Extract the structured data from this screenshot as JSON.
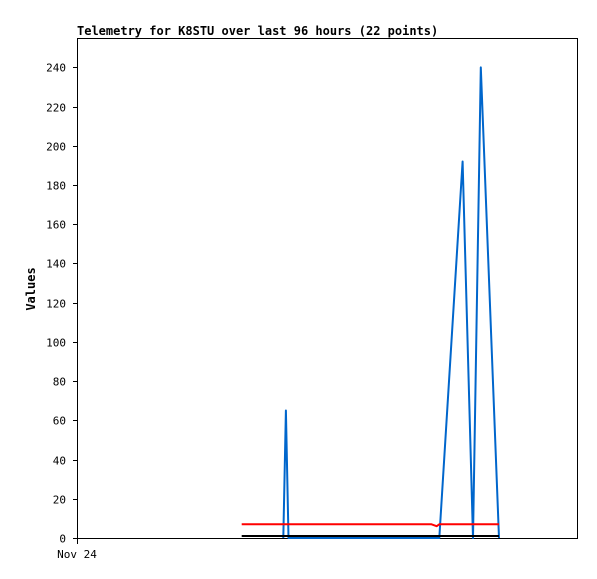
{
  "chart_data": {
    "type": "line",
    "title": "Telemetry for K8STU over last 96 hours (22 points)",
    "xlabel": "",
    "ylabel": "Values",
    "x_axis": {
      "start_label": "Nov 24",
      "range_hours": [
        0,
        96
      ]
    },
    "ylim": [
      0,
      255
    ],
    "yticks": [
      0,
      20,
      40,
      60,
      80,
      100,
      120,
      140,
      160,
      180,
      200,
      220,
      240
    ],
    "grid": false,
    "legend": "none",
    "series": [
      {
        "color": "#0066cc",
        "points": [
          [
            39.5,
            0
          ],
          [
            40.0,
            65
          ],
          [
            40.5,
            0
          ],
          [
            69.5,
            0
          ],
          [
            74.0,
            192
          ],
          [
            76.0,
            0
          ],
          [
            77.5,
            240
          ],
          [
            81.0,
            0
          ]
        ]
      },
      {
        "color": "#ff0000",
        "points": [
          [
            31.5,
            7
          ],
          [
            68.0,
            7
          ],
          [
            69.0,
            6
          ],
          [
            69.5,
            7
          ],
          [
            81.0,
            7
          ]
        ]
      },
      {
        "color": "#000000",
        "points": [
          [
            31.5,
            1
          ],
          [
            81.0,
            1
          ]
        ]
      }
    ]
  }
}
